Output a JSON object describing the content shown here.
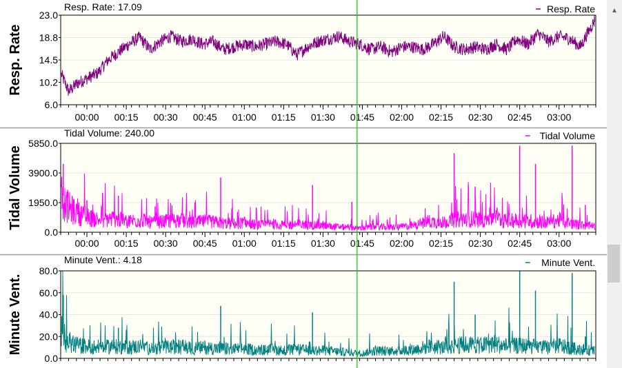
{
  "chart_data": [
    {
      "type": "line",
      "title": "Resp. Rate",
      "readout_label": "Resp. Rate:",
      "readout_value": "17.09",
      "legend": "Resp. Rate",
      "ylabel": "Resp. Rate",
      "yticks": [
        "23.0",
        "18.8",
        "14.5",
        "10.2",
        "6.0"
      ],
      "ylim": [
        6.0,
        23.0
      ],
      "xticks": [
        "00:00",
        "00:15",
        "00:30",
        "00:45",
        "01:00",
        "01:15",
        "01:30",
        "01:45",
        "02:00",
        "02:15",
        "02:30",
        "02:45",
        "03:00"
      ],
      "color": "#800080",
      "series": [
        {
          "name": "Resp. Rate",
          "x_minutes": [
            -10,
            -7,
            -4,
            0,
            4,
            8,
            12,
            16,
            20,
            24,
            28,
            32,
            36,
            40,
            44,
            48,
            52,
            56,
            60,
            64,
            68,
            72,
            76,
            80,
            84,
            88,
            92,
            96,
            100,
            104,
            108,
            112,
            116,
            120,
            124,
            128,
            132,
            136,
            140,
            144,
            148,
            152,
            156,
            160,
            164,
            168,
            172,
            176,
            180,
            184,
            188,
            194
          ],
          "values": [
            12.0,
            8.5,
            10.0,
            11.0,
            12.0,
            14.5,
            16.0,
            17.5,
            18.8,
            16.5,
            18.0,
            19.0,
            18.0,
            18.5,
            17.5,
            18.0,
            16.5,
            17.0,
            17.5,
            17.0,
            17.5,
            18.0,
            17.5,
            15.5,
            17.0,
            18.0,
            18.5,
            19.0,
            18.0,
            17.5,
            16.5,
            17.0,
            16.0,
            17.0,
            17.0,
            16.5,
            17.5,
            19.0,
            17.0,
            16.5,
            17.0,
            16.5,
            17.5,
            16.5,
            18.5,
            17.5,
            19.5,
            18.0,
            19.0,
            18.5,
            17.0,
            22.5
          ]
        }
      ]
    },
    {
      "type": "line",
      "title": "Tidal Volume",
      "readout_label": "Tidal Volume:",
      "readout_value": "240.00",
      "legend": "Tidal Volume",
      "ylabel": "Tidal Volume",
      "yticks": [
        "5850.0",
        "3900.0",
        "1950.0",
        "0.0"
      ],
      "ylim": [
        0,
        5850
      ],
      "xticks": [
        "00:00",
        "00:15",
        "00:30",
        "00:45",
        "01:00",
        "01:15",
        "01:30",
        "01:45",
        "02:00",
        "02:15",
        "02:30",
        "02:45",
        "03:00"
      ],
      "color": "#ff00ff",
      "series": [
        {
          "name": "Tidal Volume",
          "x_minutes": [
            -10,
            -8,
            -5,
            0,
            5,
            10,
            15,
            20,
            25,
            30,
            35,
            40,
            45,
            50,
            55,
            60,
            65,
            70,
            75,
            80,
            85,
            90,
            95,
            100,
            105,
            110,
            115,
            120,
            125,
            130,
            135,
            140,
            145,
            150,
            155,
            160,
            165,
            170,
            175,
            180,
            185,
            190,
            194
          ],
          "values": [
            2800,
            2000,
            1500,
            1100,
            900,
            1000,
            800,
            900,
            700,
            800,
            900,
            700,
            800,
            700,
            600,
            700,
            500,
            600,
            500,
            600,
            500,
            500,
            400,
            350,
            300,
            400,
            350,
            400,
            500,
            800,
            700,
            900,
            1000,
            900,
            1100,
            800,
            900,
            800,
            700,
            900,
            600,
            500,
            400
          ],
          "spikes": [
            {
              "x": -9,
              "y": 4500
            },
            {
              "x": 0,
              "y": 2100
            },
            {
              "x": 12,
              "y": 2400
            },
            {
              "x": 26,
              "y": 1700
            },
            {
              "x": 51,
              "y": 3600
            },
            {
              "x": 86,
              "y": 3100
            },
            {
              "x": 101,
              "y": 2000
            },
            {
              "x": 140,
              "y": 5200
            },
            {
              "x": 148,
              "y": 3000
            },
            {
              "x": 165,
              "y": 5700
            },
            {
              "x": 171,
              "y": 4500
            },
            {
              "x": 185,
              "y": 5700
            },
            {
              "x": 190,
              "y": 1800
            }
          ]
        }
      ]
    },
    {
      "type": "line",
      "title": "Minute Vent.",
      "readout_label": "Minute Vent.:",
      "readout_value": "4.18",
      "legend": "Minute Vent.",
      "ylabel": "Minute Vent.",
      "yticks": [
        "80.0",
        "60.0",
        "40.0",
        "20.0",
        "0.0"
      ],
      "ylim": [
        0,
        80
      ],
      "color": "#008080",
      "series": [
        {
          "name": "Minute Vent.",
          "x_minutes": [
            -10,
            -8,
            -5,
            0,
            5,
            10,
            15,
            20,
            25,
            30,
            35,
            40,
            45,
            50,
            55,
            60,
            65,
            70,
            75,
            80,
            85,
            90,
            95,
            100,
            105,
            110,
            115,
            120,
            125,
            130,
            135,
            140,
            145,
            150,
            155,
            160,
            165,
            170,
            175,
            180,
            185,
            190,
            194
          ],
          "values": [
            28,
            18,
            14,
            12,
            11,
            12,
            11,
            12,
            10,
            11,
            12,
            10,
            11,
            10,
            9,
            10,
            8,
            9,
            8,
            9,
            8,
            8,
            7,
            6,
            5,
            8,
            7,
            8,
            9,
            12,
            11,
            13,
            14,
            13,
            15,
            12,
            13,
            12,
            11,
            13,
            10,
            9,
            7
          ],
          "spikes": [
            {
              "x": -9,
              "y": 58
            },
            {
              "x": 12,
              "y": 28
            },
            {
              "x": 51,
              "y": 48
            },
            {
              "x": 86,
              "y": 42
            },
            {
              "x": 140,
              "y": 70
            },
            {
              "x": 148,
              "y": 40
            },
            {
              "x": 165,
              "y": 80
            },
            {
              "x": 171,
              "y": 62
            },
            {
              "x": 185,
              "y": 78
            },
            {
              "x": 190,
              "y": 20
            }
          ]
        }
      ]
    }
  ],
  "cursor_time": "01:43",
  "cursor_minutes": 103,
  "x_range_minutes": [
    -10,
    194
  ],
  "colors": {
    "cursor": "#00cc00",
    "plot_bg": "#fffff6",
    "grid": "#e6e6e6"
  }
}
